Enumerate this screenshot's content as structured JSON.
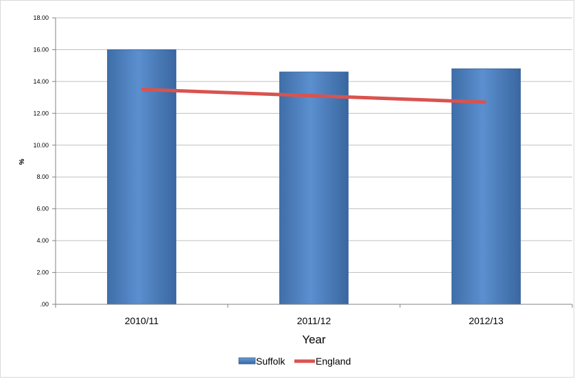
{
  "chart_data": {
    "type": "bar",
    "categories": [
      "2010/11",
      "2011/12",
      "2012/13"
    ],
    "series": [
      {
        "name": "Suffolk",
        "type": "bar",
        "values": [
          16.0,
          14.6,
          14.8
        ],
        "color": "#4f81bd"
      },
      {
        "name": "England",
        "type": "line",
        "values": [
          13.5,
          13.1,
          12.7
        ],
        "color": "#d9534f"
      }
    ],
    "xlabel": "Year",
    "ylabel": "%",
    "ylim": [
      0,
      18
    ],
    "yticks": [
      ".00",
      "2.00",
      "4.00",
      "6.00",
      "8.00",
      "10.00",
      "12.00",
      "14.00",
      "16.00",
      "18.00"
    ],
    "grid": true,
    "legend_position": "bottom"
  }
}
